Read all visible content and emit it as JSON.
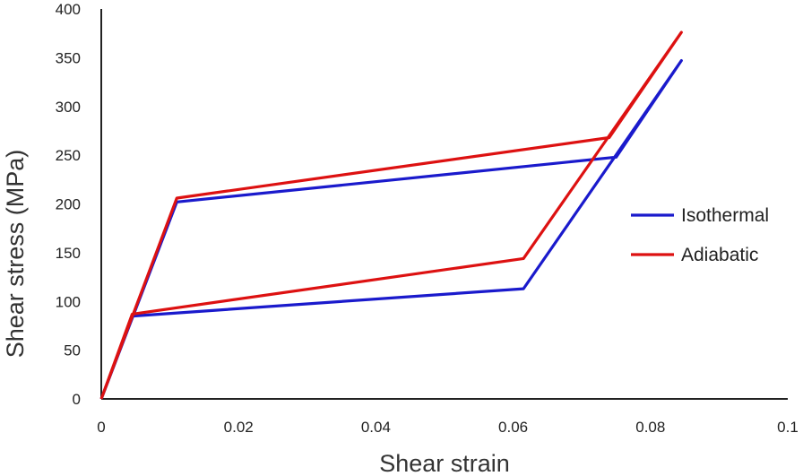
{
  "chart_data": {
    "type": "line",
    "title": "",
    "xlabel": "Shear strain",
    "ylabel": "Shear stress (MPa)",
    "xlim": [
      0,
      0.1
    ],
    "ylim": [
      0,
      400
    ],
    "x_ticks": [
      0,
      0.02,
      0.04,
      0.06,
      0.08,
      0.1
    ],
    "x_tick_labels": [
      "0",
      "0.02",
      "0.04",
      "0.06",
      "0.08",
      "0.1"
    ],
    "y_ticks": [
      0,
      50,
      100,
      150,
      200,
      250,
      300,
      350,
      400
    ],
    "y_tick_labels": [
      "0",
      "50",
      "100",
      "150",
      "200",
      "250",
      "300",
      "350",
      "400"
    ],
    "grid": false,
    "legend_position": "right",
    "series": [
      {
        "name": "Isothermal",
        "color": "#1a1acc",
        "points": [
          [
            0,
            0
          ],
          [
            0.0045,
            85
          ],
          [
            0.0615,
            113
          ],
          [
            0.0845,
            347
          ],
          [
            0.075,
            248
          ],
          [
            0.011,
            202
          ],
          [
            0,
            0
          ]
        ]
      },
      {
        "name": "Adiabatic",
        "color": "#dd1111",
        "points": [
          [
            0,
            0
          ],
          [
            0.0045,
            87
          ],
          [
            0.0615,
            144
          ],
          [
            0.0845,
            376
          ],
          [
            0.074,
            268
          ],
          [
            0.011,
            206
          ],
          [
            0,
            0
          ]
        ]
      }
    ]
  }
}
